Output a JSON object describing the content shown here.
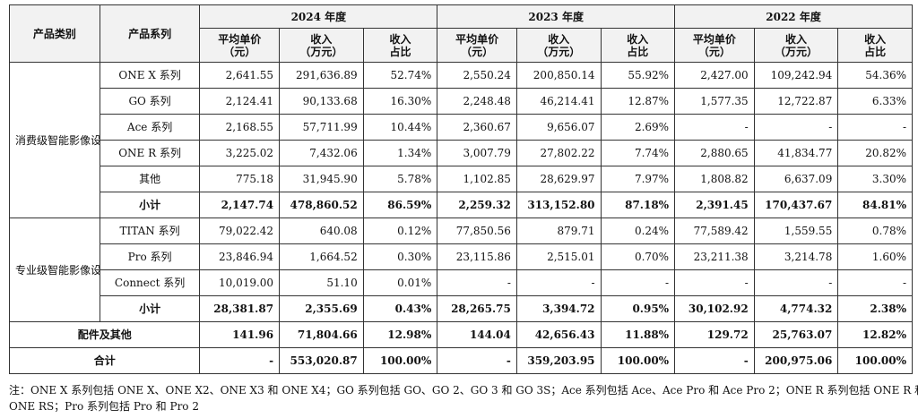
{
  "header": {
    "category": "产品类别",
    "series": "产品系列",
    "years": [
      "2024 年度",
      "2023 年度",
      "2022 年度"
    ],
    "sub_cols": [
      "平均单价\n（元）",
      "收入\n（万元）",
      "收入\n占比"
    ]
  },
  "groups": [
    {
      "name": "消费级智能影像设备",
      "rows": [
        {
          "series": "ONE X 系列",
          "v": [
            "2,641.55",
            "291,636.89",
            "52.74%",
            "2,550.24",
            "200,850.14",
            "55.92%",
            "2,427.00",
            "109,242.94",
            "54.36%"
          ]
        },
        {
          "series": "GO 系列",
          "v": [
            "2,124.41",
            "90,133.68",
            "16.30%",
            "2,248.48",
            "46,214.41",
            "12.87%",
            "1,577.35",
            "12,722.87",
            "6.33%"
          ]
        },
        {
          "series": "Ace 系列",
          "v": [
            "2,168.55",
            "57,711.99",
            "10.44%",
            "2,360.67",
            "9,656.07",
            "2.69%",
            "-",
            "-",
            "-"
          ]
        },
        {
          "series": "ONE R 系列",
          "v": [
            "3,225.02",
            "7,432.06",
            "1.34%",
            "3,007.79",
            "27,802.22",
            "7.74%",
            "2,880.65",
            "41,834.77",
            "20.82%"
          ]
        },
        {
          "series": "其他",
          "v": [
            "775.18",
            "31,945.90",
            "5.78%",
            "1,102.85",
            "28,629.97",
            "7.97%",
            "1,808.82",
            "6,637.09",
            "3.30%"
          ]
        }
      ],
      "subtotal": {
        "label": "小计",
        "v": [
          "2,147.74",
          "478,860.52",
          "86.59%",
          "2,259.32",
          "313,152.80",
          "87.18%",
          "2,391.45",
          "170,437.67",
          "84.81%"
        ]
      }
    },
    {
      "name": "专业级智能影像设备",
      "rows": [
        {
          "series": "TITAN 系列",
          "v": [
            "79,022.42",
            "640.08",
            "0.12%",
            "77,850.56",
            "879.71",
            "0.24%",
            "77,589.42",
            "1,559.55",
            "0.78%"
          ]
        },
        {
          "series": "Pro 系列",
          "v": [
            "23,846.94",
            "1,664.52",
            "0.30%",
            "23,115.86",
            "2,515.01",
            "0.70%",
            "23,211.38",
            "3,214.78",
            "1.60%"
          ]
        },
        {
          "series": "Connect 系列",
          "v": [
            "10,019.00",
            "51.10",
            "0.01%",
            "-",
            "-",
            "-",
            "-",
            "-",
            "-"
          ]
        }
      ],
      "subtotal": {
        "label": "小计",
        "v": [
          "28,381.87",
          "2,355.69",
          "0.43%",
          "28,265.75",
          "3,394.72",
          "0.95%",
          "30,102.92",
          "4,774.32",
          "2.38%"
        ]
      }
    }
  ],
  "accessories": {
    "label": "配件及其他",
    "v": [
      "141.96",
      "71,804.66",
      "12.98%",
      "144.04",
      "42,656.43",
      "11.88%",
      "129.72",
      "25,763.07",
      "12.82%"
    ]
  },
  "total": {
    "label": "合计",
    "v": [
      "-",
      "553,020.87",
      "100.00%",
      "-",
      "359,203.95",
      "100.00%",
      "-",
      "200,975.06",
      "100.00%"
    ]
  },
  "notes": [
    "注：ONE X 系列包括 ONE X、ONE X2、ONE X3 和 ONE X4；GO 系列包括 GO、GO 2、GO 3 和 GO 3S；Ace 系列包括 Ace、Ace Pro 和 Ace Pro 2；ONE R 系列包括 ONE R 和",
    "ONE RS；Pro 系列包括 Pro 和 Pro 2"
  ]
}
